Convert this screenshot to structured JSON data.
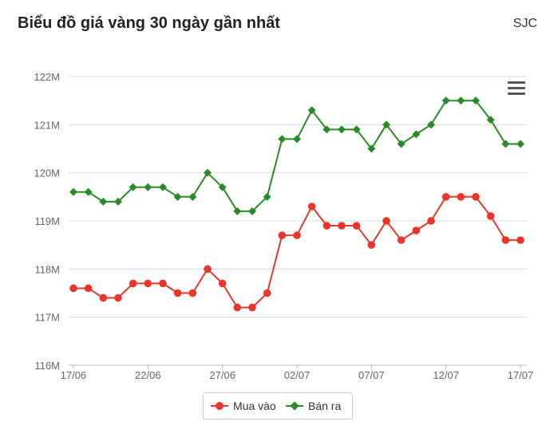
{
  "header": {
    "title": "Biểu đồ giá vàng 30 ngày gần nhất",
    "brand": "SJC"
  },
  "menu": {
    "icon": "hamburger-menu-icon"
  },
  "chart_data": {
    "type": "line",
    "x": [
      "17/06",
      "18/06",
      "19/06",
      "20/06",
      "21/06",
      "22/06",
      "23/06",
      "24/06",
      "25/06",
      "26/06",
      "27/06",
      "28/06",
      "29/06",
      "30/06",
      "01/07",
      "02/07",
      "03/07",
      "04/07",
      "05/07",
      "06/07",
      "07/07",
      "08/07",
      "09/07",
      "10/07",
      "11/07",
      "12/07",
      "13/07",
      "14/07",
      "15/07",
      "16/07",
      "17/07"
    ],
    "x_tick_labels": [
      "17/06",
      "22/06",
      "27/06",
      "02/07",
      "07/07",
      "12/07",
      "17/07"
    ],
    "y_tick_labels": [
      "116M",
      "117M",
      "118M",
      "119M",
      "120M",
      "121M",
      "122M"
    ],
    "ylim": [
      116,
      122
    ],
    "y_unit": "M",
    "grid": true,
    "legend_position": "bottom",
    "series": [
      {
        "name": "Mua vào",
        "color": "#e8362d",
        "marker": "circle",
        "values": [
          117.6,
          117.6,
          117.4,
          117.4,
          117.7,
          117.7,
          117.7,
          117.5,
          117.5,
          118.0,
          117.7,
          117.2,
          117.2,
          117.5,
          118.7,
          118.7,
          119.3,
          118.9,
          118.9,
          118.9,
          118.5,
          119.0,
          118.6,
          118.8,
          119.0,
          119.5,
          119.5,
          119.5,
          119.1,
          118.6,
          118.6
        ]
      },
      {
        "name": "Bán ra",
        "color": "#2a8a2a",
        "marker": "diamond",
        "values": [
          119.6,
          119.6,
          119.4,
          119.4,
          119.7,
          119.7,
          119.7,
          119.5,
          119.5,
          120.0,
          119.7,
          119.2,
          119.2,
          119.5,
          120.7,
          120.7,
          121.3,
          120.9,
          120.9,
          120.9,
          120.5,
          121.0,
          120.6,
          120.8,
          121.0,
          121.5,
          121.5,
          121.5,
          121.1,
          120.6,
          120.6
        ]
      }
    ]
  }
}
